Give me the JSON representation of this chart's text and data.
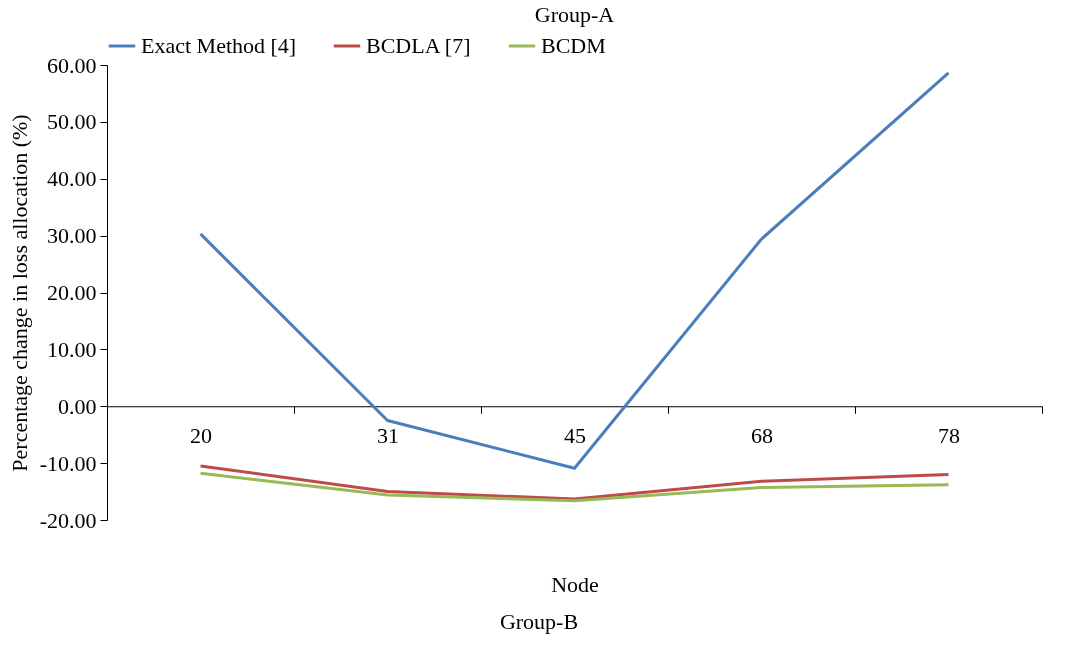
{
  "chart_data": {
    "type": "line",
    "title": "Group-A",
    "xlabel": "Node",
    "ylabel": "Percentage change in loss allocation (%)",
    "annotations": [
      "Group-B"
    ],
    "categories": [
      "20",
      "31",
      "45",
      "68",
      "78"
    ],
    "series": [
      {
        "name": "Exact Method [4]",
        "color": "#4a7ebb",
        "values": [
          30.3,
          -2.5,
          -10.9,
          29.4,
          58.6
        ]
      },
      {
        "name": "BCDLA [7]",
        "color": "#be4b48",
        "values": [
          -10.5,
          -15.0,
          -16.3,
          -13.2,
          -12.0
        ]
      },
      {
        "name": "BCDM",
        "color": "#98b954",
        "values": [
          -11.8,
          -15.6,
          -16.6,
          -14.3,
          -13.8
        ]
      }
    ],
    "ylim": [
      -20,
      60
    ],
    "yticks": [
      {
        "value": -20,
        "label": "-20.00"
      },
      {
        "value": -10,
        "label": "-10.00"
      },
      {
        "value": 0,
        "label": "0.00"
      },
      {
        "value": 10,
        "label": "10.00"
      },
      {
        "value": 20,
        "label": "20.00"
      },
      {
        "value": 30,
        "label": "30.00"
      },
      {
        "value": 40,
        "label": "40.00"
      },
      {
        "value": 50,
        "label": "50.00"
      },
      {
        "value": 60,
        "label": "60.00"
      }
    ],
    "legend": "top",
    "grid": false,
    "marker": "none",
    "line_style": "solid"
  }
}
